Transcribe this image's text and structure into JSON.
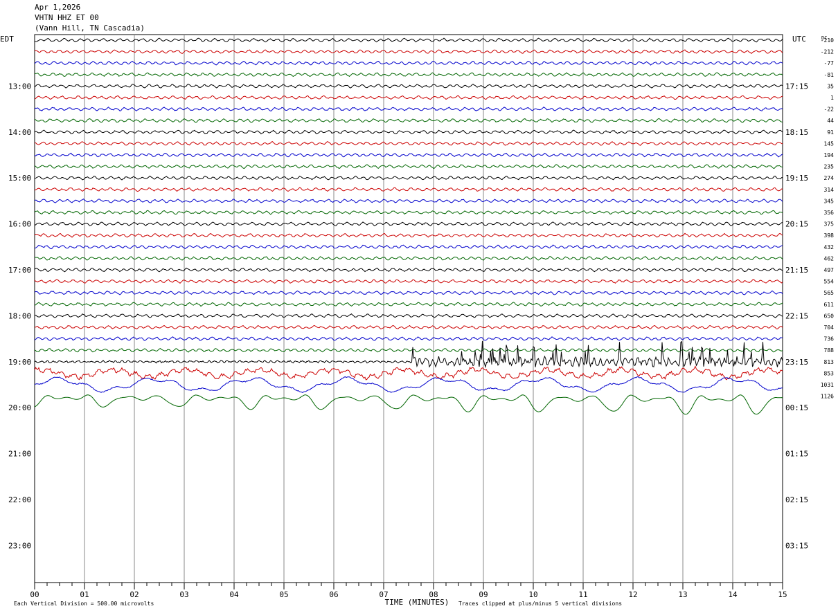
{
  "header": {
    "date": "Apr 1,2026",
    "station": "VHTN HHZ ET 00",
    "location": "(Vann Hill, TN Cascadia)"
  },
  "chart_data": {
    "type": "line",
    "subtype": "helicorder",
    "left_label": "EDT",
    "right_label": "UTC",
    "dc_label": "DC",
    "xlabel": "TIME (MINUTES)",
    "x_ticks": [
      "00",
      "01",
      "02",
      "03",
      "04",
      "05",
      "06",
      "07",
      "08",
      "09",
      "10",
      "11",
      "12",
      "13",
      "14",
      "15"
    ],
    "xlim": [
      0,
      15
    ],
    "left_hour_labels": [
      "13:00",
      "14:00",
      "15:00",
      "16:00",
      "17:00",
      "18:00",
      "19:00",
      "20:00",
      "21:00",
      "22:00",
      "23:00"
    ],
    "right_hour_labels": [
      "17:15",
      "18:15",
      "19:15",
      "20:15",
      "21:15",
      "22:15",
      "23:15",
      "00:15",
      "01:15",
      "02:15",
      "03:15"
    ],
    "dc_offsets": [
      "-210",
      "-212",
      "-77",
      "-81",
      "35",
      "1",
      "-22",
      "44",
      "91",
      "145",
      "194",
      "235",
      "274",
      "314",
      "345",
      "356",
      "375",
      "398",
      "432",
      "462",
      "497",
      "554",
      "565",
      "611",
      "650",
      "704",
      "736",
      "788",
      "813",
      "853",
      "1031",
      "1126"
    ],
    "trace_colors": [
      "#000000",
      "#cc0000",
      "#0000cc",
      "#006600"
    ],
    "grid": true,
    "footer_left": "Each Vertical Division =  500.00 microvolts",
    "footer_right": "Traces clipped at plus/minus 5 vertical divisions"
  }
}
